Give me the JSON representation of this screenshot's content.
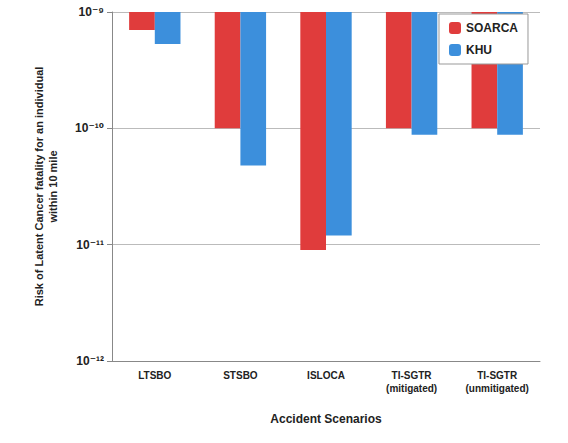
{
  "chart_data": {
    "type": "bar",
    "x_label": "Accident Scenarios",
    "y_label": "Risk of Latent Cancer fatality for an individual\nwithin 10 mile",
    "categories": [
      "LTSBO",
      "STSBO",
      "ISLOCA",
      "TI-SGTR (mitigated)",
      "TI-SGTR (unmitigated)"
    ],
    "series": [
      {
        "name": "SOARCA",
        "color": "#e03c3c",
        "values": [
          7e-10,
          1e-10,
          9e-12,
          1e-10,
          1e-10
        ]
      },
      {
        "name": "KHU",
        "color": "#3c8fdc",
        "values": [
          5.3e-10,
          4.8e-11,
          1.2e-11,
          8.8e-11,
          8.8e-11
        ]
      }
    ],
    "log": "y",
    "ylim": [
      1e-12,
      1e-09
    ],
    "yticks": [
      {
        "value": 1e-12,
        "label": "10⁻¹²"
      },
      {
        "value": 1e-11,
        "label": "10⁻¹¹"
      },
      {
        "value": 1e-10,
        "label": "10⁻¹⁰"
      },
      {
        "value": 1e-09,
        "label": "10⁻⁹"
      }
    ],
    "grid": true,
    "legend": "top-right"
  }
}
